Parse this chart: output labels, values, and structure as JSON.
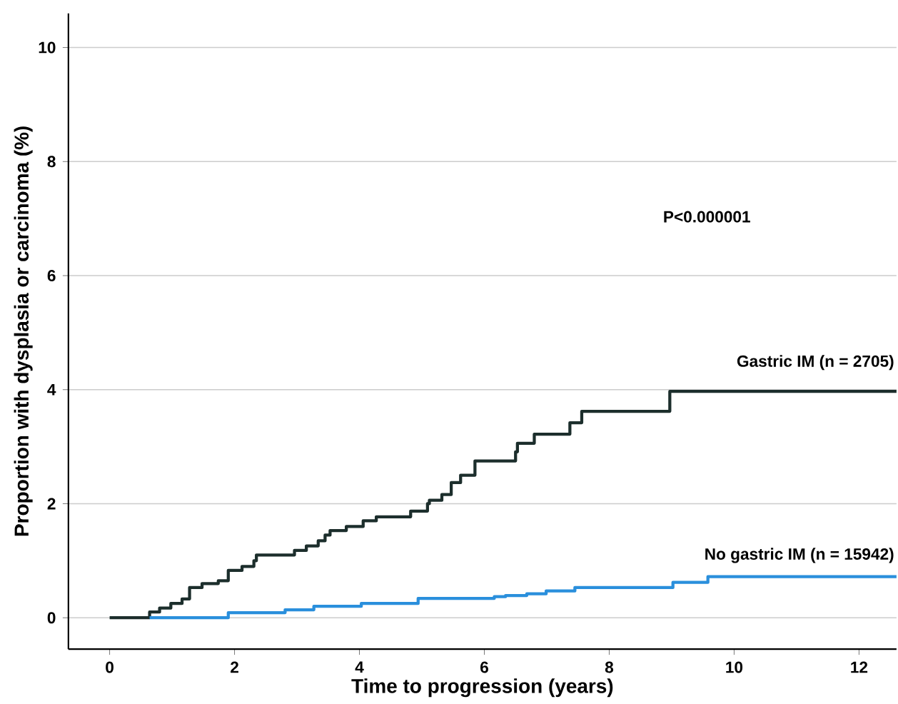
{
  "chart_data": {
    "type": "step",
    "xlabel": "Time to progression (years)",
    "ylabel": "Proportion with dysplasia or carcinoma (%)",
    "xlim": [
      -0.66,
      12.6
    ],
    "ylim": [
      -0.55,
      10.6
    ],
    "xticks": [
      0,
      2,
      4,
      6,
      8,
      10,
      12
    ],
    "yticks": [
      0,
      2,
      4,
      6,
      8,
      10
    ],
    "grid": "y",
    "marker": "none",
    "line_style": "solid",
    "annotations": [
      "P<0.000001"
    ],
    "series": [
      {
        "name": "Gastric IM (n = 2705)",
        "color": "#1c2e2c",
        "x": [
          0,
          0.64,
          0.8,
          0.98,
          1.16,
          1.28,
          1.48,
          1.74,
          1.9,
          2.12,
          2.31,
          2.35,
          2.96,
          3.15,
          3.34,
          3.45,
          3.53,
          3.79,
          4.06,
          4.27,
          4.82,
          5.09,
          5.12,
          5.32,
          5.47,
          5.62,
          5.85,
          6.5,
          6.53,
          6.8,
          7.37,
          7.56,
          8.97,
          12.6
        ],
        "values": [
          0,
          0.1,
          0.17,
          0.25,
          0.33,
          0.53,
          0.6,
          0.65,
          0.83,
          0.9,
          1.0,
          1.1,
          1.18,
          1.26,
          1.35,
          1.45,
          1.53,
          1.6,
          1.7,
          1.77,
          1.87,
          2.0,
          2.06,
          2.16,
          2.37,
          2.5,
          2.75,
          2.91,
          3.06,
          3.22,
          3.42,
          3.62,
          3.97,
          3.97
        ]
      },
      {
        "name": "No gastric IM (n = 15942)",
        "color": "#2a8fdc",
        "x": [
          0.64,
          1.9,
          2.81,
          3.27,
          4.03,
          4.94,
          6.16,
          6.34,
          6.68,
          6.99,
          7.45,
          9.02,
          9.58,
          12.6
        ],
        "values": [
          0,
          0.09,
          0.14,
          0.2,
          0.25,
          0.34,
          0.37,
          0.39,
          0.42,
          0.47,
          0.53,
          0.62,
          0.72,
          0.72
        ]
      }
    ]
  }
}
